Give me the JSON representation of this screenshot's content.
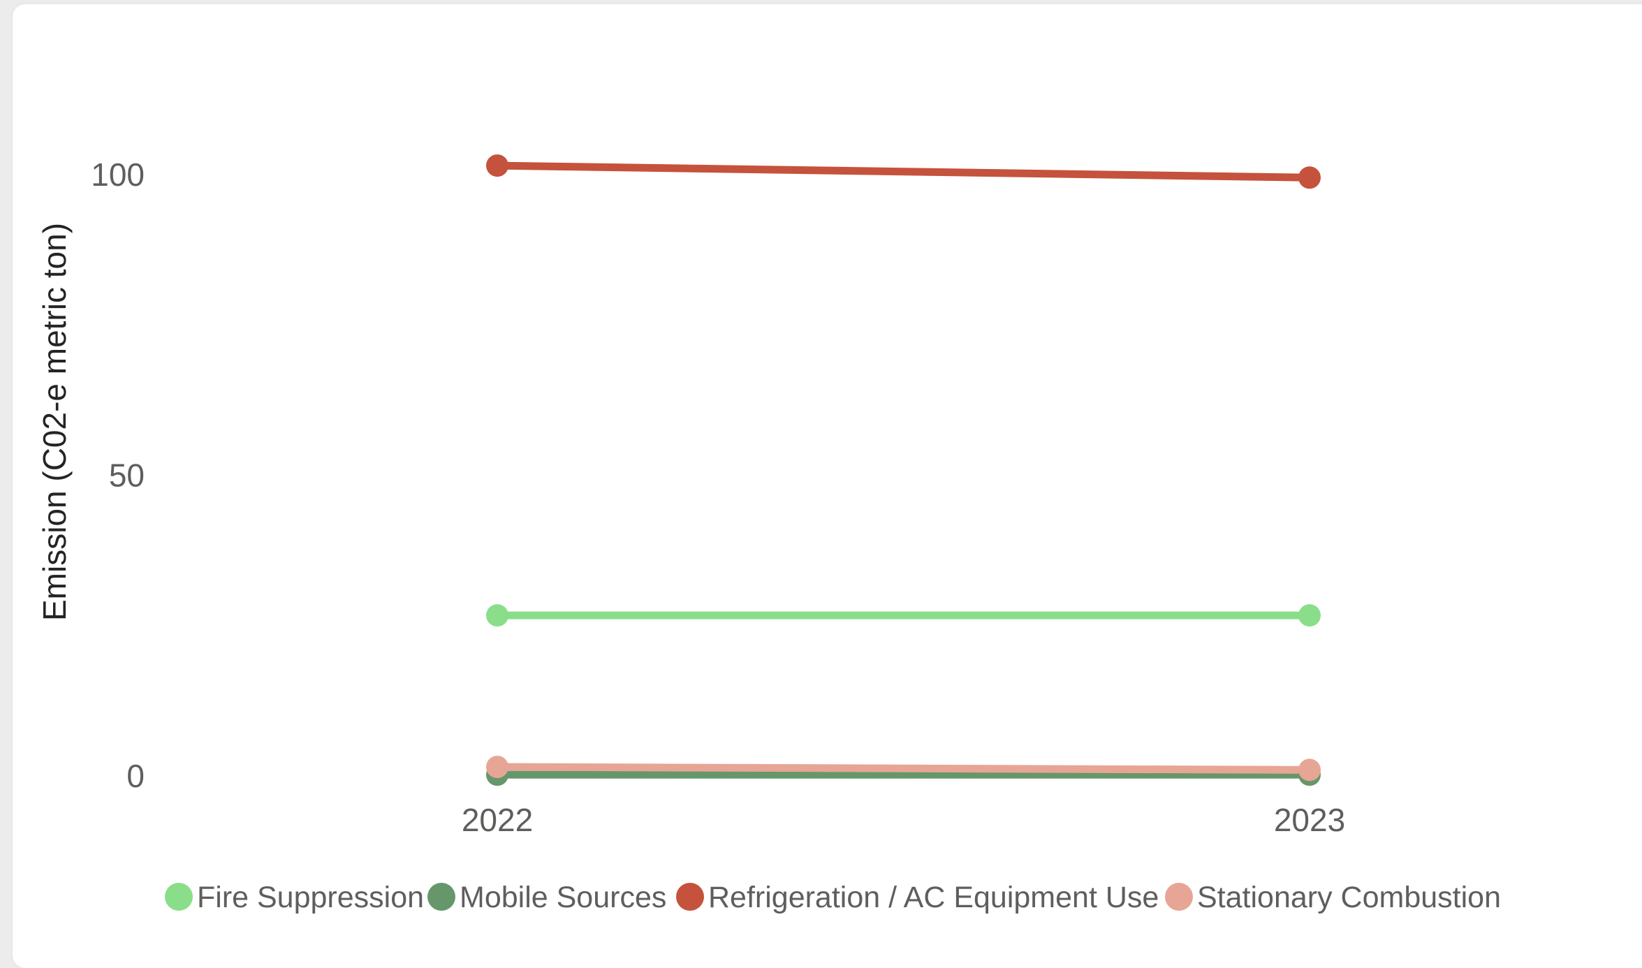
{
  "chart_data": {
    "type": "line",
    "xlabel": "",
    "ylabel": "Emission (C02-e metric ton)",
    "x": [
      "2022",
      "2023"
    ],
    "ylim": [
      0,
      100
    ],
    "y_ticks": [
      0,
      50,
      100
    ],
    "grid": false,
    "legend_position": "bottom",
    "series": [
      {
        "name": "Fire Suppression",
        "values": [
          26.7,
          26.7
        ],
        "color": "#8ade8a"
      },
      {
        "name": "Mobile Sources",
        "values": [
          0.2,
          0.2
        ],
        "color": "#66976a"
      },
      {
        "name": "Refrigeration / AC Equipment Use",
        "values": [
          101.5,
          99.5
        ],
        "color": "#c5523c"
      },
      {
        "name": "Stationary Combustion",
        "values": [
          1.5,
          1.0
        ],
        "color": "#e7a595"
      }
    ]
  }
}
